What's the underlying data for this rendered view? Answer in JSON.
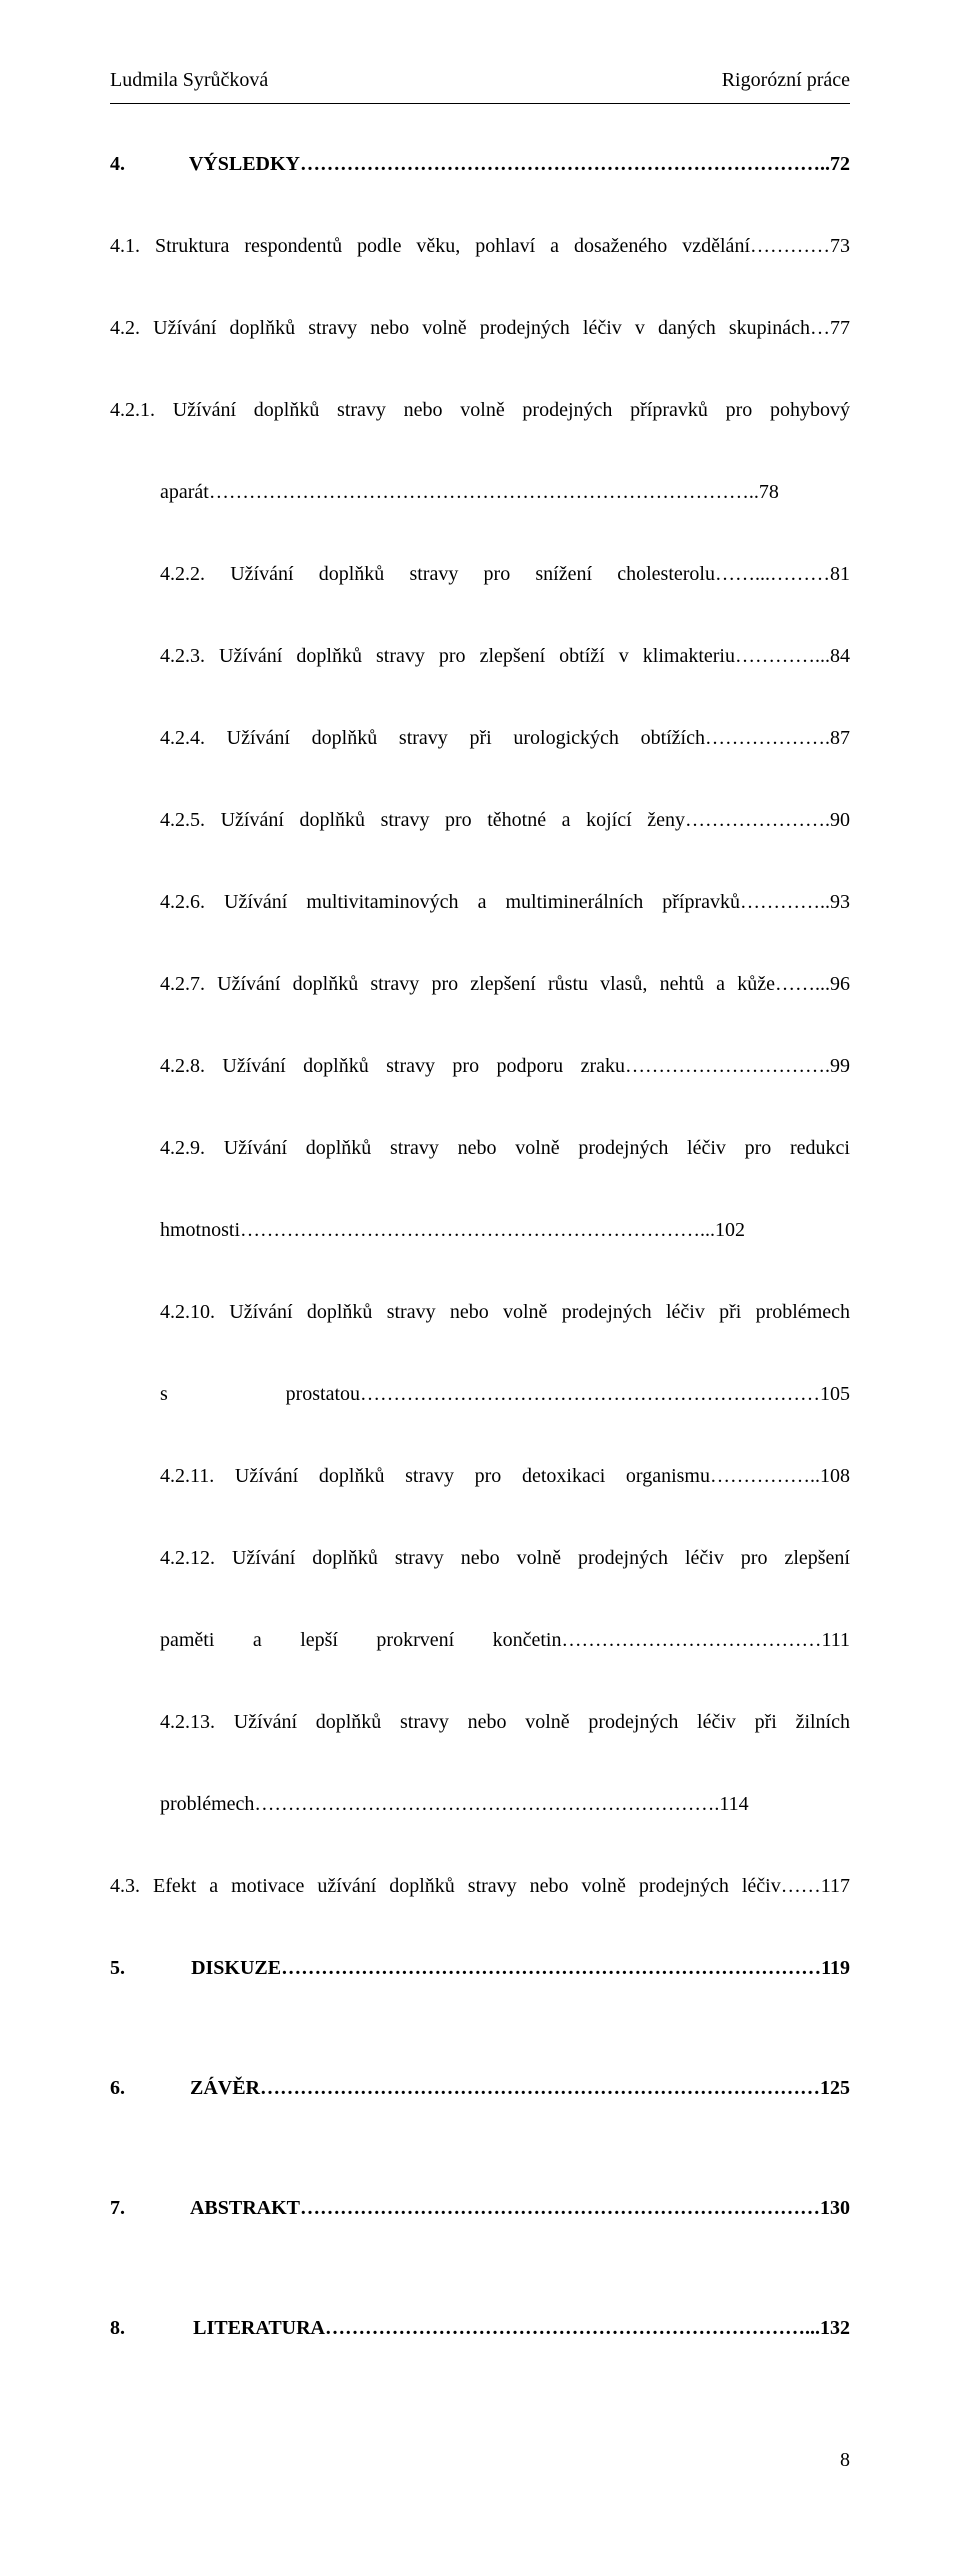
{
  "header": {
    "left": "Ludmila Syrůčková",
    "right": "Rigorózní práce"
  },
  "lines": [
    {
      "text": "4. VÝSLEDKY……………………………………………………………………..72",
      "bold": true
    },
    {
      "text": "4.1. Struktura respondentů podle věku, pohlaví a dosaženého vzdělání…………73"
    },
    {
      "text": "4.2. Užívání doplňků stravy nebo volně prodejných léčiv v daných skupinách…77"
    },
    {
      "text": "4.2.1. Užívání doplňků stravy nebo volně prodejných přípravků pro pohybový"
    },
    {
      "text": "aparát………………………………………………………………………..78",
      "indent": 2
    },
    {
      "text": "4.2.2. Užívání doplňků stravy pro snížení cholesterolu……...………81",
      "indent": 1
    },
    {
      "text": "4.2.3. Užívání doplňků stravy pro zlepšení obtíží v klimakteriu…………...84",
      "indent": 1
    },
    {
      "text": "4.2.4. Užívání doplňků stravy při urologických obtížích……………….87",
      "indent": 1
    },
    {
      "text": "4.2.5. Užívání doplňků stravy pro těhotné a kojící ženy………………….90",
      "indent": 1
    },
    {
      "text": "4.2.6. Užívání multivitaminových a multiminerálních přípravků…………..93",
      "indent": 1
    },
    {
      "text": "4.2.7. Užívání doplňků stravy pro zlepšení růstu vlasů, nehtů a kůže……...96",
      "indent": 1
    },
    {
      "text": "4.2.8. Užívání doplňků stravy pro podporu zraku………………………….99",
      "indent": 1
    },
    {
      "text": "4.2.9. Užívání doplňků stravy nebo volně prodejných léčiv pro redukci",
      "indent": 1
    },
    {
      "text": "hmotnosti……………………………………………………………...102",
      "indent": 2
    },
    {
      "text": "4.2.10. Užívání doplňků stravy nebo volně prodejných léčiv při problémech",
      "indent": 1
    },
    {
      "text": "s prostatou……………………………………………………………105",
      "indent": 2
    },
    {
      "text": "4.2.11. Užívání doplňků stravy pro detoxikaci organismu……………..108",
      "indent": 1
    },
    {
      "text": "4.2.12. Užívání doplňků stravy nebo volně prodejných léčiv pro zlepšení",
      "indent": 1
    },
    {
      "text": "paměti a lepší prokrvení končetin…………………………………111",
      "indent": 2
    },
    {
      "text": "4.2.13. Užívání doplňků stravy nebo volně prodejných léčiv při žilních",
      "indent": 1
    },
    {
      "text": "problémech…………………………………………………………….114",
      "indent": 2
    },
    {
      "text": "4.3. Efekt a motivace užívání doplňků stravy nebo volně prodejných léčiv……117"
    },
    {
      "text": "5. DISKUZE………………………………………………………………………119",
      "bold": true
    },
    {
      "spacer": true
    },
    {
      "text": "6. ZÁVĚR…………………………………………………………………………125",
      "bold": true
    },
    {
      "spacer": true
    },
    {
      "text": "7. ABSTRAKT……………………………………………………………………130",
      "bold": true
    },
    {
      "spacer": true
    },
    {
      "text": "8. LITERATURA………………………………………………………………...132",
      "bold": true
    }
  ],
  "page_number": "8"
}
